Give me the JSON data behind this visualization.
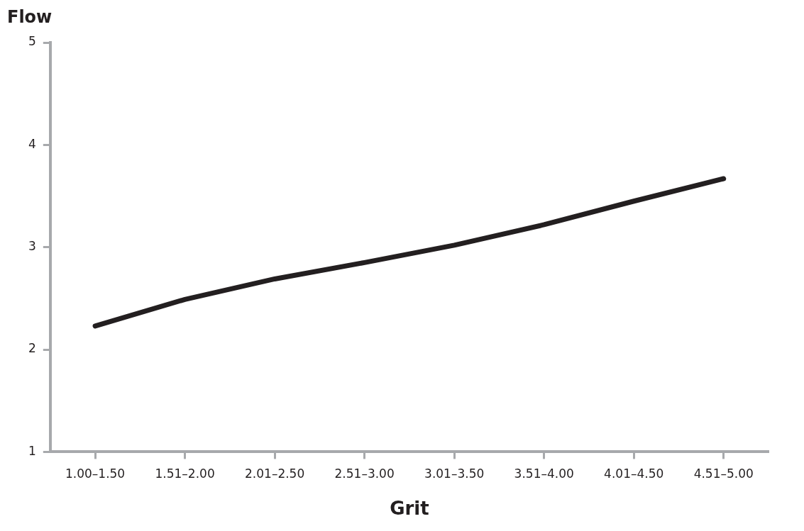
{
  "chart_data": {
    "type": "line",
    "xlabel": "Grit",
    "ylabel": "Flow",
    "categories": [
      "1.00–1.50",
      "1.51–2.00",
      "2.01–2.50",
      "2.51–3.00",
      "3.01–3.50",
      "3.51–4.00",
      "4.01–4.50",
      "4.51–5.00"
    ],
    "series": [
      {
        "color": "#231f20",
        "values": [
          2.23,
          2.49,
          2.69,
          2.85,
          3.02,
          3.22,
          3.45,
          3.67
        ]
      }
    ],
    "ylim": [
      1,
      5
    ],
    "yticks": [
      1,
      2,
      3,
      4,
      5
    ],
    "grid": false,
    "legend": false,
    "marker": "none",
    "line_style": "solid"
  }
}
